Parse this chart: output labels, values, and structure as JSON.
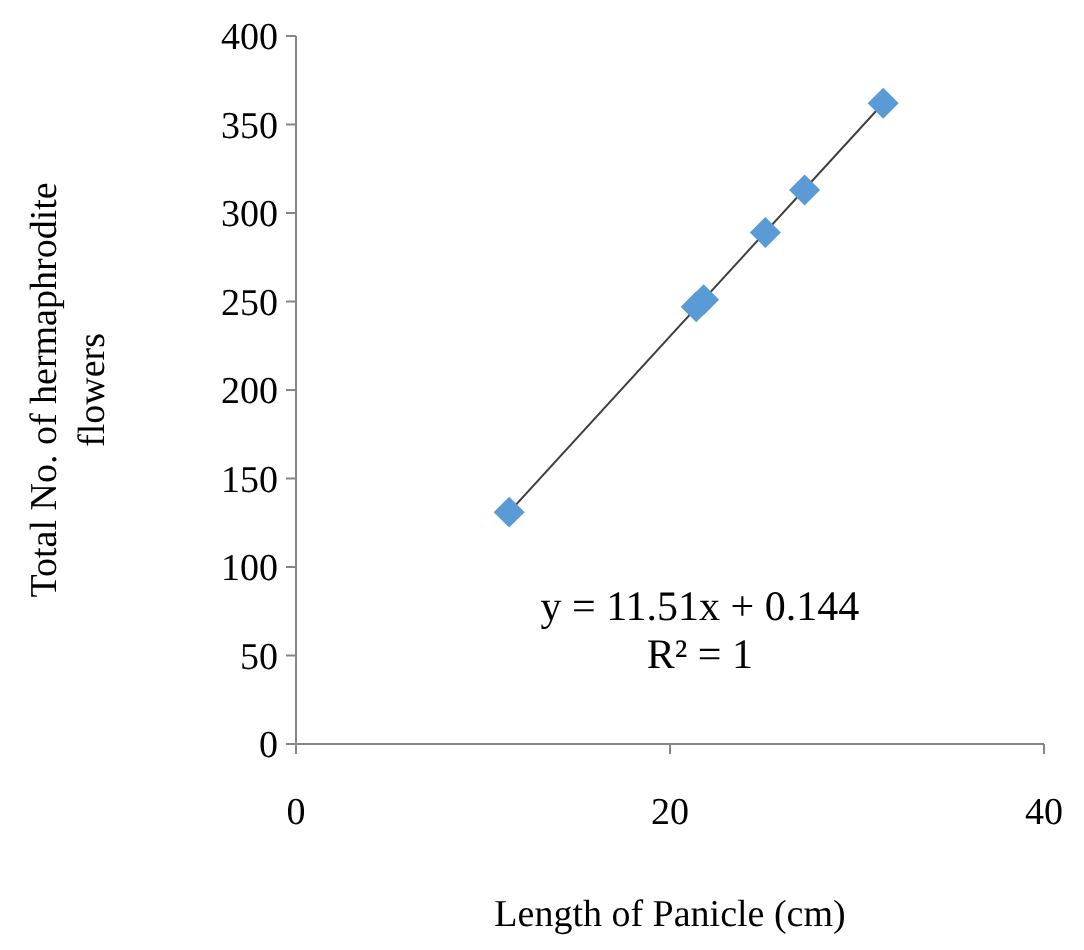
{
  "chart_data": {
    "type": "scatter",
    "xlabel": "Length of Panicle (cm)",
    "ylabel": "Total No. of hermaphrodite flowers",
    "xlim": [
      0,
      40
    ],
    "xticks": [
      0,
      20,
      40
    ],
    "ylim": [
      0,
      400
    ],
    "yticks": [
      0,
      50,
      100,
      150,
      200,
      250,
      300,
      350,
      400
    ],
    "grid": false,
    "series": [
      {
        "color": "#5b9bd5",
        "marker": "diamond",
        "x": [
          11.4,
          21.4,
          21.8,
          25.1,
          27.2,
          31.4
        ],
        "values": [
          131,
          247,
          251,
          289,
          313,
          362
        ]
      },
      {
        "type": "line",
        "color": "#404040",
        "x": [
          11.4,
          31.4
        ],
        "values": [
          131,
          362
        ],
        "marker": "none",
        "line_style": "solid"
      }
    ],
    "annotations": [
      "y = 11.51x + 0.144",
      "R² = 1"
    ]
  }
}
